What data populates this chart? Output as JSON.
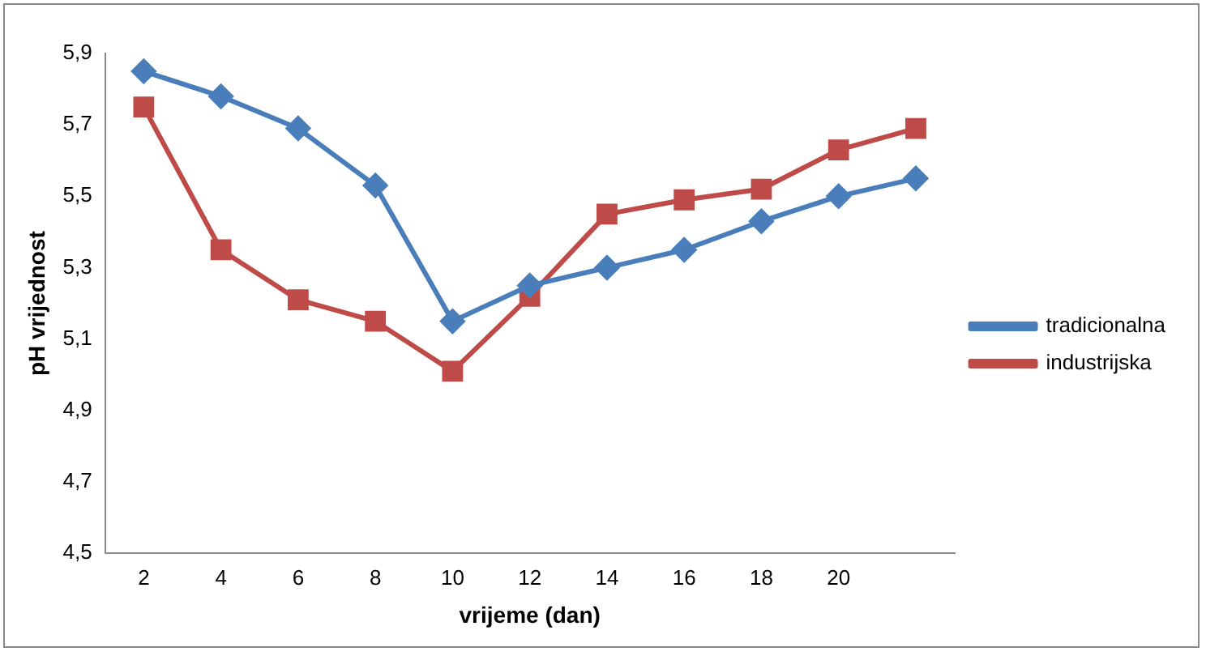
{
  "chart_data": {
    "type": "line",
    "xlabel": "vrijeme (dan)",
    "ylabel": "pH vrijednost",
    "categories": [
      "2",
      "4",
      "6",
      "8",
      "10",
      "12",
      "14",
      "16",
      "18",
      "20",
      null
    ],
    "series": [
      {
        "name": "tradicionalna",
        "color": "#4a7ebb",
        "marker": "diamond",
        "values": [
          5.85,
          5.78,
          5.69,
          5.53,
          5.15,
          5.25,
          5.3,
          5.35,
          5.43,
          5.5,
          5.55
        ]
      },
      {
        "name": "industrijska",
        "color": "#be4b48",
        "marker": "square",
        "values": [
          5.75,
          5.35,
          5.21,
          5.15,
          5.01,
          5.22,
          5.45,
          5.49,
          5.52,
          5.63,
          5.69
        ]
      }
    ],
    "ylim": [
      4.5,
      5.9
    ],
    "yticks": [
      {
        "value": 4.5,
        "label": "4,5"
      },
      {
        "value": 4.7,
        "label": "4,7"
      },
      {
        "value": 4.9,
        "label": "4,9"
      },
      {
        "value": 5.1,
        "label": "5,1"
      },
      {
        "value": 5.3,
        "label": "5,3"
      },
      {
        "value": 5.5,
        "label": "5,5"
      },
      {
        "value": 5.7,
        "label": "5,7"
      },
      {
        "value": 5.9,
        "label": "5,9"
      }
    ],
    "grid": false,
    "legend": "right",
    "line_style": "solid"
  }
}
